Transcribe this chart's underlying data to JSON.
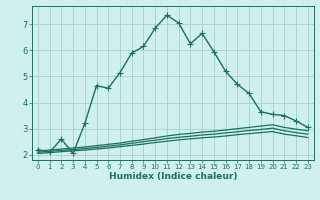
{
  "xlabel": "Humidex (Indice chaleur)",
  "ylabel": "",
  "bg_color": "#cff0ee",
  "grid_color": "#a8cfc8",
  "line_color": "#1a7060",
  "xlim": [
    -0.5,
    23.5
  ],
  "ylim": [
    1.8,
    7.7
  ],
  "x_ticks": [
    0,
    1,
    2,
    3,
    4,
    5,
    6,
    7,
    8,
    9,
    10,
    11,
    12,
    13,
    14,
    15,
    16,
    17,
    18,
    19,
    20,
    21,
    22,
    23
  ],
  "y_ticks": [
    2,
    3,
    4,
    5,
    6,
    7
  ],
  "series": [
    {
      "x": [
        0,
        1,
        2,
        3,
        4,
        5,
        6,
        7,
        8,
        9,
        10,
        11,
        12,
        13,
        14,
        15,
        16,
        17,
        18,
        19,
        20,
        21,
        22,
        23
      ],
      "y": [
        2.2,
        2.1,
        2.6,
        2.05,
        3.2,
        4.65,
        4.55,
        5.15,
        5.9,
        6.15,
        6.85,
        7.35,
        7.05,
        6.25,
        6.65,
        5.95,
        5.2,
        4.7,
        4.35,
        3.65,
        3.55,
        3.5,
        3.3,
        3.05
      ],
      "marker": "+",
      "markersize": 4,
      "linewidth": 1.0
    },
    {
      "x": [
        0,
        1,
        2,
        3,
        4,
        5,
        6,
        7,
        8,
        9,
        10,
        11,
        12,
        13,
        14,
        15,
        16,
        17,
        18,
        19,
        20,
        21,
        22,
        23
      ],
      "y": [
        2.15,
        2.18,
        2.22,
        2.26,
        2.3,
        2.35,
        2.4,
        2.45,
        2.52,
        2.58,
        2.65,
        2.72,
        2.78,
        2.82,
        2.87,
        2.9,
        2.95,
        3.0,
        3.05,
        3.1,
        3.15,
        3.05,
        2.98,
        2.92
      ],
      "marker": null,
      "linewidth": 0.9
    },
    {
      "x": [
        0,
        1,
        2,
        3,
        4,
        5,
        6,
        7,
        8,
        9,
        10,
        11,
        12,
        13,
        14,
        15,
        16,
        17,
        18,
        19,
        20,
        21,
        22,
        23
      ],
      "y": [
        2.1,
        2.13,
        2.17,
        2.2,
        2.24,
        2.28,
        2.33,
        2.38,
        2.44,
        2.5,
        2.56,
        2.62,
        2.67,
        2.71,
        2.76,
        2.79,
        2.84,
        2.88,
        2.93,
        2.97,
        3.02,
        2.92,
        2.85,
        2.79
      ],
      "marker": null,
      "linewidth": 0.9
    },
    {
      "x": [
        0,
        1,
        2,
        3,
        4,
        5,
        6,
        7,
        8,
        9,
        10,
        11,
        12,
        13,
        14,
        15,
        16,
        17,
        18,
        19,
        20,
        21,
        22,
        23
      ],
      "y": [
        2.05,
        2.08,
        2.12,
        2.15,
        2.18,
        2.22,
        2.26,
        2.31,
        2.36,
        2.41,
        2.47,
        2.52,
        2.57,
        2.61,
        2.65,
        2.68,
        2.72,
        2.77,
        2.81,
        2.85,
        2.89,
        2.79,
        2.73,
        2.66
      ],
      "marker": null,
      "linewidth": 0.9
    }
  ]
}
